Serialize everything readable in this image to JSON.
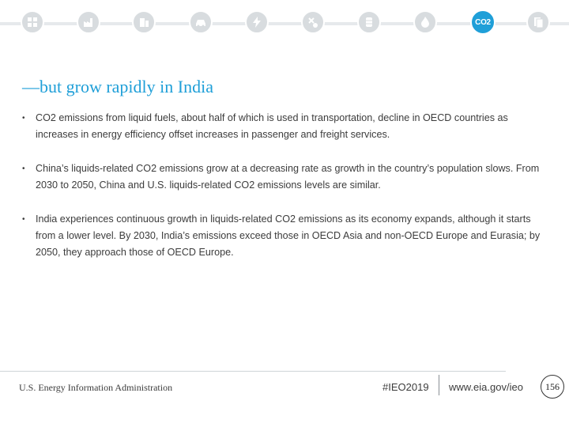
{
  "icon_bar": {
    "icons": [
      {
        "name": "analysis-icon"
      },
      {
        "name": "industry-icon"
      },
      {
        "name": "buildings-icon"
      },
      {
        "name": "car-icon"
      },
      {
        "name": "electricity-icon"
      },
      {
        "name": "petroleum-icon"
      },
      {
        "name": "oil-barrel-icon"
      },
      {
        "name": "natural-gas-flame-icon"
      },
      {
        "name": "co2-icon",
        "label": "CO2",
        "active": true
      },
      {
        "name": "documents-icon"
      }
    ],
    "active_color": "#1f9fd8",
    "inactive_color": "#d8dcdf"
  },
  "slide": {
    "title": "—but grow rapidly in India",
    "bullet_marker": "•",
    "bullets": [
      "CO2 emissions from liquid fuels, about half of which is used in transportation, decline in OECD countries as increases in energy efficiency offset increases in passenger and freight services.",
      "China’s liquids-related CO2 emissions grow at a decreasing rate as growth in the country’s population slows. From 2030 to 2050, China and U.S. liquids-related CO2 emissions levels are similar.",
      "India experiences continuous growth in liquids-related CO2 emissions as its economy expands, although it starts from a lower level. By 2030, India’s emissions exceed those in OECD Asia and non-OECD Europe and Eurasia; by 2050, they approach those of OECD Europe."
    ]
  },
  "footer": {
    "organization": "U.S. Energy Information Administration",
    "hashtag": "#IEO2019",
    "url": "www.eia.gov/ieo",
    "page_number": "156"
  }
}
